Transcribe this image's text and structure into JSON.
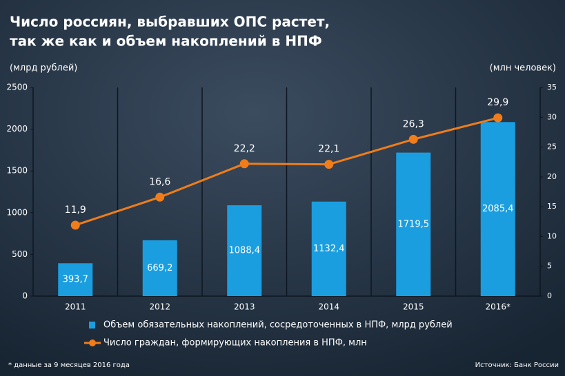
{
  "chart_data": {
    "type": "bar_line",
    "title": "Число россиян, выбравших ОПС растет,",
    "subtitle": "так же как и объем накоплений в НПФ",
    "y_label": "(млрд рублей)",
    "y2_label": "(млн человек)",
    "categories": [
      "2011",
      "2012",
      "2013",
      "2014",
      "2015",
      "2016*"
    ],
    "series": [
      {
        "name": "Объем обязательных накоплений, сосредоточенных в НПФ, млрд рублей",
        "color": "#1a9ee0",
        "type": "bar",
        "values": [
          393.7,
          669.2,
          1088.4,
          1132.4,
          1719.5,
          2085.4
        ],
        "value_labels": [
          "393,7",
          "669,2",
          "1088,4",
          "1132,4",
          "1719,5",
          "2085,4"
        ]
      },
      {
        "name": "Число граждан, формирующих накопления в НПФ, млн",
        "color": "#f07d1a",
        "type": "line",
        "axis": "y2",
        "values": [
          11.9,
          16.6,
          22.2,
          22.1,
          26.3,
          29.9
        ],
        "value_labels": [
          "11,9",
          "16,6",
          "22,2",
          "22,1",
          "26,3",
          "29,9"
        ]
      }
    ],
    "ylim": [
      0,
      2500
    ],
    "yticks": [
      0,
      500,
      1000,
      1500,
      2000,
      2500
    ],
    "y2lim": [
      0,
      35
    ],
    "y2ticks": [
      0,
      5,
      10,
      15,
      20,
      25,
      30,
      35
    ],
    "grid": false,
    "footnote": "* данные за 9 месяцев 2016 года",
    "source": "Источник: Банк России"
  }
}
